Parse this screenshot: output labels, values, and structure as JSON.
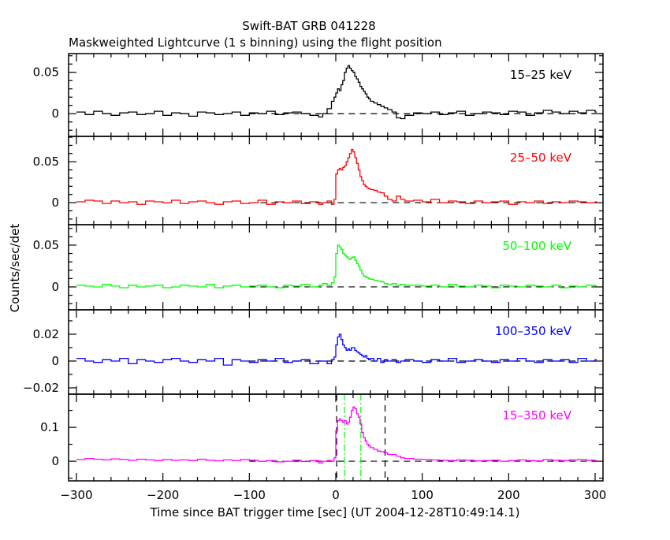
{
  "chart_data": {
    "type": "line",
    "title": "Swift-BAT GRB 041228",
    "subtitle": "Maskweighted Lightcurve (1 s binning) using the flight position",
    "xlabel": "Time since BAT trigger time [sec] (UT 2004-12-28T10:49:14.1)",
    "ylabel": "Counts/sec/det",
    "xlim": [
      -310,
      310
    ],
    "x_ticks": [
      -300,
      -200,
      -100,
      0,
      100,
      200,
      300
    ],
    "x_tick_labels": [
      "−300",
      "−200",
      "−100",
      "0",
      "100",
      "200",
      "300"
    ],
    "x": [
      -300,
      -290,
      -280,
      -270,
      -260,
      -250,
      -240,
      -230,
      -220,
      -210,
      -200,
      -190,
      -180,
      -170,
      -160,
      -150,
      -140,
      -130,
      -120,
      -110,
      -100,
      -90,
      -80,
      -70,
      -60,
      -50,
      -40,
      -30,
      -20,
      -15,
      -10,
      -5,
      -2,
      0,
      2,
      4,
      6,
      8,
      10,
      12,
      14,
      16,
      18,
      20,
      22,
      24,
      26,
      28,
      30,
      32,
      34,
      36,
      38,
      40,
      44,
      48,
      52,
      56,
      60,
      65,
      70,
      75,
      80,
      90,
      100,
      110,
      120,
      130,
      140,
      150,
      160,
      170,
      180,
      190,
      200,
      210,
      220,
      230,
      240,
      250,
      260,
      270,
      280,
      290,
      300
    ],
    "panels": [
      {
        "name": "15–25 keV",
        "color": "#000000",
        "ylim": [
          -0.0274,
          0.0726
        ],
        "y_ticks": [
          0,
          0.05
        ],
        "y_tick_labels": [
          "0",
          "0.05"
        ],
        "minor_step": 0.01,
        "values": [
          0.002,
          -0.001,
          0.003,
          0,
          -0.002,
          0.001,
          0.002,
          -0.001,
          0,
          0.003,
          -0.002,
          0.001,
          0,
          -0.003,
          0.002,
          0.001,
          -0.001,
          0,
          0.002,
          -0.002,
          0.001,
          0,
          0.003,
          -0.001,
          0.001,
          0.002,
          0,
          -0.002,
          -0.004,
          0.0,
          0.006,
          0.015,
          0.02,
          0.025,
          0.03,
          0.028,
          0.035,
          0.04,
          0.05,
          0.055,
          0.058,
          0.055,
          0.052,
          0.05,
          0.045,
          0.042,
          0.038,
          0.033,
          0.03,
          0.027,
          0.024,
          0.02,
          0.018,
          0.015,
          0.013,
          0.011,
          0.009,
          0.007,
          0.005,
          0.002,
          -0.005,
          -0.006,
          -0.002,
          0.001,
          0.0,
          0.002,
          -0.001,
          0.001,
          0.003,
          -0.002,
          0.0,
          0.002,
          0.001,
          -0.001,
          0.003,
          0.002,
          -0.002,
          0.001,
          0.004,
          0.002,
          0.0,
          0.003,
          0.001,
          0.004,
          0.002
        ]
      },
      {
        "name": "25–50 keV",
        "color": "#ff0000",
        "ylim": [
          -0.0269,
          0.081
        ],
        "y_ticks": [
          0,
          0.05
        ],
        "y_tick_labels": [
          "0",
          "0.05"
        ],
        "minor_step": 0.01,
        "values": [
          0.001,
          0.003,
          0.002,
          -0.001,
          0.002,
          0,
          0.001,
          -0.002,
          0.002,
          0.001,
          0,
          0.003,
          -0.001,
          0.001,
          0.002,
          0,
          -0.002,
          0.001,
          0.002,
          -0.001,
          0,
          0.003,
          -0.002,
          0.001,
          0,
          0.002,
          -0.001,
          0.001,
          -0.002,
          0.0,
          0.002,
          -0.002,
          0.004,
          0.035,
          0.04,
          0.042,
          0.04,
          0.043,
          0.045,
          0.05,
          0.055,
          0.06,
          0.065,
          0.062,
          0.055,
          0.048,
          0.04,
          0.032,
          0.027,
          0.022,
          0.02,
          0.018,
          0.017,
          0.016,
          0.015,
          0.013,
          0.012,
          0.008,
          0.004,
          0.002,
          0.008,
          0.004,
          0.002,
          0.003,
          0.001,
          0.004,
          0.0,
          0.002,
          0.001,
          -0.001,
          0.002,
          0.0,
          0.001,
          0.002,
          -0.002,
          0.001,
          0.0,
          0.002,
          -0.001,
          0.001,
          0.0,
          0.002,
          0.001,
          0.0,
          0.001
        ]
      },
      {
        "name": "50–100 keV",
        "color": "#00ff00",
        "ylim": [
          -0.0274,
          0.0745
        ],
        "y_ticks": [
          0,
          0.05
        ],
        "y_tick_labels": [
          "0",
          "0.05"
        ],
        "minor_step": 0.01,
        "values": [
          0.002,
          0.001,
          0.0,
          0.003,
          0.001,
          -0.001,
          0.002,
          0.0,
          0.001,
          0.002,
          -0.001,
          0.0,
          0.002,
          0.001,
          0.0,
          0.003,
          -0.001,
          0.001,
          0.002,
          0.0,
          0.001,
          0.002,
          0.0,
          -0.001,
          0.002,
          0.001,
          0.003,
          0.0,
          0.002,
          0.004,
          0.002,
          0.005,
          0.012,
          0.04,
          0.05,
          0.048,
          0.045,
          0.04,
          0.038,
          0.036,
          0.034,
          0.033,
          0.035,
          0.036,
          0.032,
          0.028,
          0.025,
          0.02,
          0.016,
          0.013,
          0.012,
          0.011,
          0.01,
          0.009,
          0.008,
          0.007,
          0.006,
          0.004,
          0.003,
          0.004,
          0.002,
          0.003,
          0.002,
          0.002,
          0.001,
          0.002,
          0.0,
          0.003,
          0.001,
          0.0,
          0.002,
          0.001,
          -0.001,
          0.002,
          0.001,
          0.0,
          0.002,
          0.001,
          0.0,
          0.002,
          -0.001,
          0.001,
          0.0,
          0.002,
          0.001
        ]
      },
      {
        "name": "100–350 keV",
        "color": "#0000ff",
        "ylim": [
          -0.0247,
          0.0382
        ],
        "y_ticks": [
          -0.02,
          0,
          0.02
        ],
        "y_tick_labels": [
          "−0.02",
          "0",
          "0.02"
        ],
        "minor_step": 0.01,
        "values": [
          0.002,
          0.0,
          -0.001,
          0.001,
          0.0,
          0.002,
          -0.002,
          0.001,
          0.0,
          -0.001,
          0.001,
          0.002,
          0.0,
          -0.001,
          0.001,
          0.0,
          0.002,
          -0.003,
          0.001,
          0.0,
          -0.001,
          0.001,
          0.0,
          0.002,
          -0.001,
          0.0,
          0.001,
          -0.002,
          0.0,
          0.0,
          -0.002,
          0.001,
          0.003,
          0.012,
          0.018,
          0.02,
          0.016,
          0.012,
          0.01,
          0.008,
          0.009,
          0.008,
          0.01,
          0.01,
          0.008,
          0.007,
          0.006,
          0.005,
          0.004,
          0.003,
          0.004,
          0.002,
          0.001,
          0.002,
          0.0,
          0.002,
          -0.001,
          0.001,
          0.0,
          0.001,
          -0.001,
          0.0,
          0.001,
          0.0,
          -0.001,
          0.001,
          0.0,
          0.002,
          -0.001,
          0.0,
          0.001,
          0.0,
          -0.001,
          0.001,
          0.0,
          0.002,
          0.0,
          -0.001,
          0.001,
          0.0,
          0.001,
          -0.001,
          0.002,
          0.0,
          0.001
        ]
      },
      {
        "name": "15–350 keV",
        "color": "#ff00ff",
        "ylim": [
          -0.058,
          0.198
        ],
        "y_ticks": [
          0,
          0.1
        ],
        "y_tick_labels": [
          "0",
          "0.1"
        ],
        "minor_step": 0.05,
        "values": [
          0.005,
          0.008,
          0.006,
          0.004,
          0.007,
          0.005,
          0.003,
          0.006,
          0.004,
          0.002,
          0.005,
          0.003,
          0.004,
          0.002,
          0.006,
          0.003,
          0.001,
          0.004,
          0.002,
          0.005,
          0.003,
          0.0,
          0.002,
          -0.002,
          0.0,
          0.003,
          -0.001,
          0.002,
          -0.005,
          0.0,
          0.002,
          0.0,
          0.01,
          0.09,
          0.12,
          0.125,
          0.12,
          0.115,
          0.12,
          0.11,
          0.115,
          0.13,
          0.15,
          0.16,
          0.155,
          0.14,
          0.13,
          0.11,
          0.085,
          0.07,
          0.06,
          0.05,
          0.045,
          0.04,
          0.035,
          0.03,
          0.028,
          0.025,
          0.02,
          0.02,
          0.015,
          0.01,
          0.008,
          0.006,
          0.005,
          0.004,
          0.003,
          0.002,
          0.004,
          0.003,
          0.001,
          0.002,
          0.003,
          0.0,
          0.002,
          0.004,
          0.002,
          0.001,
          0.005,
          0.003,
          0.002,
          0.004,
          0.005,
          0.003,
          0.002
        ],
        "vlines": [
          {
            "x": 1,
            "color": "#000000",
            "style": "dashed"
          },
          {
            "x": 57,
            "color": "#000000",
            "style": "dashed"
          },
          {
            "x": 10,
            "color": "#00ff00",
            "style": "dash-dot"
          },
          {
            "x": 29,
            "color": "#00ff00",
            "style": "dash-dot"
          }
        ]
      }
    ],
    "zero_line": {
      "from": -100,
      "to": 300,
      "style": "dashed"
    },
    "grid": false
  }
}
